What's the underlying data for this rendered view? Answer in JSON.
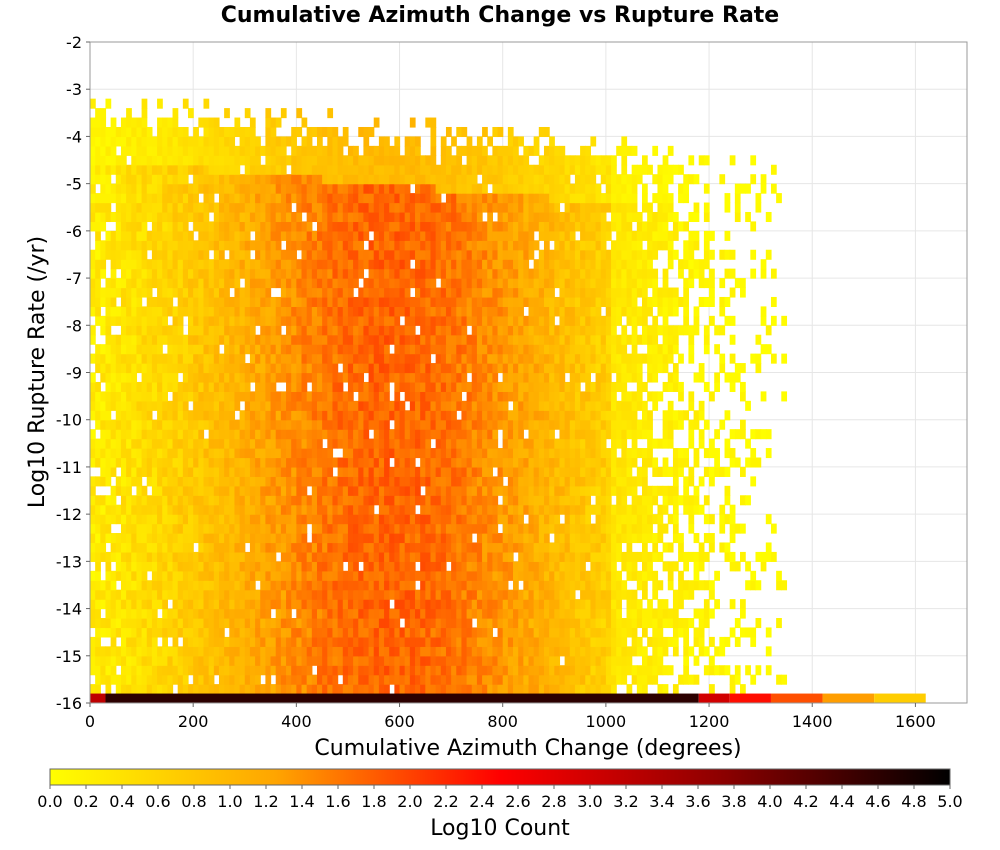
{
  "chart_data": {
    "type": "heatmap",
    "title": "Cumulative Azimuth Change vs Rupture Rate",
    "xlabel": "Cumulative Azimuth Change (degrees)",
    "ylabel": "Log10 Rupture Rate (/yr)",
    "xlim": [
      0,
      1700
    ],
    "ylim": [
      -16,
      -2
    ],
    "x_bin_width": 10,
    "y_bin_height": 0.2,
    "x_ticks": [
      0,
      200,
      400,
      600,
      800,
      1000,
      1200,
      1400,
      1600
    ],
    "y_ticks": [
      -2,
      -3,
      -4,
      -5,
      -6,
      -7,
      -8,
      -9,
      -10,
      -11,
      -12,
      -13,
      -14,
      -15,
      -16
    ],
    "x_tick_labels": [
      "0",
      "200",
      "400",
      "600",
      "800",
      "1000",
      "1200",
      "1400",
      "1600"
    ],
    "y_tick_labels": [
      "-2",
      "-3",
      "-4",
      "-5",
      "-6",
      "-7",
      "-8",
      "-9",
      "-10",
      "-11",
      "-12",
      "-13",
      "-14",
      "-15",
      "-16"
    ],
    "grid": true,
    "colorbar": {
      "label": "Log10 Count",
      "range": [
        0,
        5
      ],
      "ticks": [
        "0.0",
        "0.2",
        "0.4",
        "0.6",
        "0.8",
        "1.0",
        "1.2",
        "1.4",
        "1.6",
        "1.8",
        "2.0",
        "2.2",
        "2.4",
        "2.6",
        "2.8",
        "3.0",
        "3.2",
        "3.4",
        "3.6",
        "3.8",
        "4.0",
        "4.2",
        "4.4",
        "4.6",
        "4.8",
        "5.0"
      ],
      "colors": [
        "#ffff00",
        "#ffa500",
        "#ff0000",
        "#8b0000",
        "#000000"
      ]
    },
    "density_model": {
      "peak_log10_count": 1.75,
      "peak_x": 580,
      "x_spread": 420,
      "upper_edge_rate_at_x0": -4.0,
      "upper_edge_rate_at_x1100": -5.0,
      "lower_edge_rate": -15.6,
      "x_extent_max": 1350
    },
    "bottom_row": {
      "rate": -16,
      "segments": [
        {
          "x_from": 0,
          "x_to": 30,
          "log10_count": 3.2
        },
        {
          "x_from": 30,
          "x_to": 1180,
          "log10_count": 4.6
        },
        {
          "x_from": 1180,
          "x_to": 1240,
          "log10_count": 3.0
        },
        {
          "x_from": 1240,
          "x_to": 1320,
          "log10_count": 2.4
        },
        {
          "x_from": 1320,
          "x_to": 1420,
          "log10_count": 1.9
        },
        {
          "x_from": 1420,
          "x_to": 1520,
          "log10_count": 1.3
        },
        {
          "x_from": 1520,
          "x_to": 1620,
          "log10_count": 0.7
        }
      ]
    }
  }
}
